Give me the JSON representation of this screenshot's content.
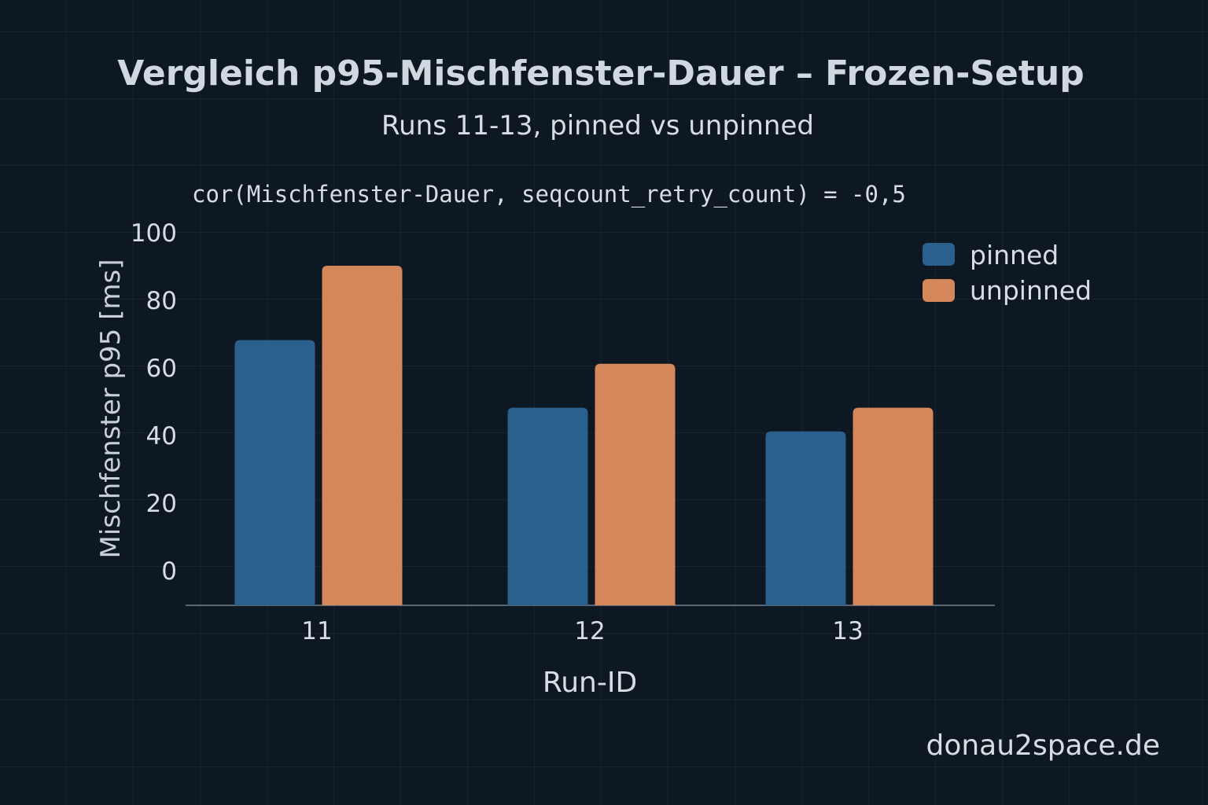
{
  "chart_data": {
    "type": "bar",
    "title": "Vergleich p95-Mischfenster-Dauer – Frozen-Setup",
    "subtitle": "Runs 11-13, pinned vs unpinned",
    "annotation": "cor(Mischfenster-Dauer, seqcount_retry_count) = -0,5",
    "xlabel": "Run-ID",
    "ylabel": "Mischfenster p95 [ms]",
    "categories": [
      "11",
      "12",
      "13"
    ],
    "series": [
      {
        "name": "pinned",
        "color": "#29608e",
        "values": [
          68,
          48,
          41
        ]
      },
      {
        "name": "unpinned",
        "color": "#d4875a",
        "values": [
          90,
          61,
          48
        ]
      }
    ],
    "yticks": [
      0,
      20,
      40,
      60,
      80,
      100
    ],
    "ylim": [
      0,
      100
    ],
    "grid": true,
    "legend": "top-right",
    "watermark": "donau2space.de"
  }
}
